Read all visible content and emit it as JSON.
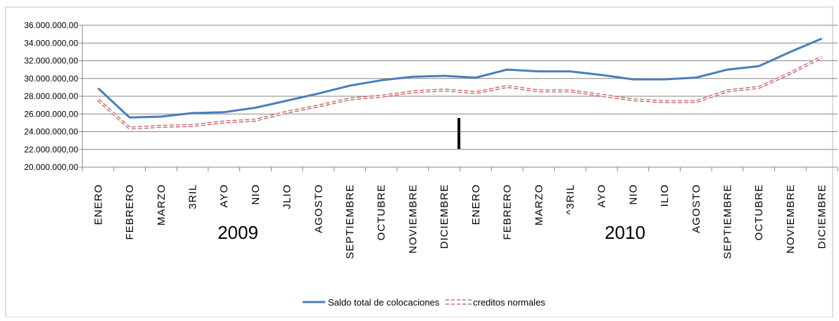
{
  "chart_data": {
    "type": "line",
    "title": "",
    "xlabel": "",
    "ylabel": "",
    "ylim": [
      20000000,
      36000000
    ],
    "y_tick_labels": [
      "20.000.000,00",
      "22.000.000,00",
      "24.000.000,00",
      "26.000.000,00",
      "28.000.000,00",
      "30.000.000,00",
      "32.000.000,00",
      "34.000.000,00",
      "36.000.000,00"
    ],
    "categories": [
      "ENERO",
      "FEBRERO",
      "MARZO",
      "3RIL",
      "AYO",
      "NIO",
      "JLIO",
      "AGOSTO",
      "SEPTIEMBRE",
      "OCTUBRE",
      "NOVIEMBRE",
      "DICIEMBRE",
      "ENERO",
      "FEBRERO",
      "MARZO",
      "^3RIL",
      "AYO",
      "NIO",
      "ILIO",
      "AGOSTO",
      "SEPTIEMBRE",
      "OCTUBRE",
      "NOVIEMBRE",
      "DICIEMBRE"
    ],
    "year_labels": [
      "2009",
      "2010"
    ],
    "grid": true,
    "legend_position": "bottom",
    "series": [
      {
        "name": "Saldo total de colocaciones",
        "color": "#4a7ebb",
        "style": "solid",
        "values": [
          28900000,
          25600000,
          25700000,
          26100000,
          26200000,
          26700000,
          27500000,
          28300000,
          29200000,
          29800000,
          30200000,
          30300000,
          30100000,
          31000000,
          30800000,
          30800000,
          30400000,
          29900000,
          29900000,
          30100000,
          31000000,
          31400000,
          33000000,
          34500000
        ]
      },
      {
        "name": "creditos normales",
        "color": "#c0504d",
        "style": "dashed",
        "values": [
          27600000,
          24400000,
          24600000,
          24700000,
          25100000,
          25300000,
          26200000,
          26900000,
          27700000,
          28000000,
          28500000,
          28700000,
          28400000,
          29100000,
          28600000,
          28600000,
          28100000,
          27600000,
          27400000,
          27400000,
          28600000,
          29000000,
          30600000,
          32400000
        ]
      }
    ]
  }
}
